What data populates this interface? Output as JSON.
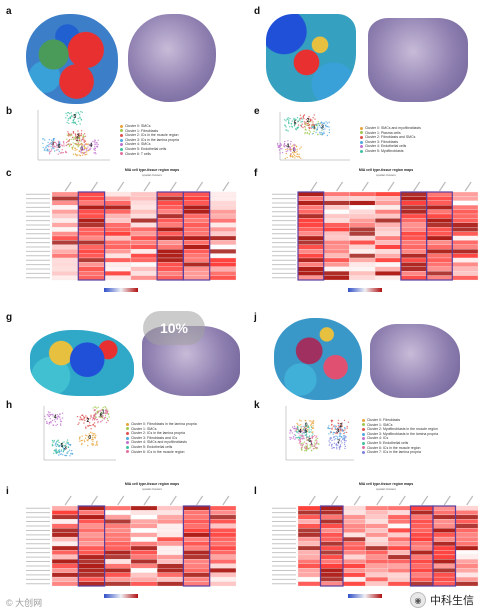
{
  "panel_labels": {
    "a": "a",
    "b": "b",
    "c": "c",
    "d": "d",
    "e": "e",
    "f": "f",
    "g": "g",
    "h": "h",
    "i": "i",
    "j": "j",
    "k": "k",
    "l": "l"
  },
  "legends": {
    "b": [
      {
        "label": "Cluster 0: SMCs",
        "color": "#e8a33a"
      },
      {
        "label": "Cluster 1: Fibroblasts",
        "color": "#a0c850"
      },
      {
        "label": "Cluster 2: ICs in the muscle region",
        "color": "#e05050"
      },
      {
        "label": "Cluster 3: ICs in the lamina propria",
        "color": "#50a8e0"
      },
      {
        "label": "Cluster 4: SMCs",
        "color": "#c070d0"
      },
      {
        "label": "Cluster 5: Endothelial cells",
        "color": "#40c0a0"
      },
      {
        "label": "Cluster 6: T cells",
        "color": "#e070a0"
      }
    ],
    "e": [
      {
        "label": "Cluster 0: SMCs and myofibroblasts",
        "color": "#e8a33a"
      },
      {
        "label": "Cluster 1: Plasma cells",
        "color": "#a0c850"
      },
      {
        "label": "Cluster 2: Fibroblasts and SMCs",
        "color": "#e05050"
      },
      {
        "label": "Cluster 3: Fibroblasts",
        "color": "#50a8e0"
      },
      {
        "label": "Cluster 4: Endothelial cells",
        "color": "#c070d0"
      },
      {
        "label": "Cluster 5: Myofibroblasts",
        "color": "#40c0a0"
      }
    ],
    "h": [
      {
        "label": "Cluster 0: Fibroblasts in the lamina propria",
        "color": "#e8a33a"
      },
      {
        "label": "Cluster 1: SMCs",
        "color": "#a0c850"
      },
      {
        "label": "Cluster 2: ICs in the lamina propria",
        "color": "#e05050"
      },
      {
        "label": "Cluster 3: Fibroblasts and ICs",
        "color": "#50a8e0"
      },
      {
        "label": "Cluster 4: SMCs and myofibroblasts",
        "color": "#c070d0"
      },
      {
        "label": "Cluster 5: Endothelial cells",
        "color": "#40c0a0"
      },
      {
        "label": "Cluster 6: ICs in the muscle region",
        "color": "#e070a0"
      }
    ],
    "k": [
      {
        "label": "Cluster 0: Fibroblasts",
        "color": "#e8a33a"
      },
      {
        "label": "Cluster 1: SMCs",
        "color": "#a0c850"
      },
      {
        "label": "Cluster 2: Myofibroblasts in the muscle region",
        "color": "#e05050"
      },
      {
        "label": "Cluster 3: Myofibroblasts in the lamina propria",
        "color": "#50a8e0"
      },
      {
        "label": "Cluster 4: ICs",
        "color": "#c070d0"
      },
      {
        "label": "Cluster 5: Endothelial cells",
        "color": "#40c0a0"
      },
      {
        "label": "Cluster 6: ICs in the muscle region",
        "color": "#e070a0"
      },
      {
        "label": "Cluster 7: ICs in the lamina propria",
        "color": "#8080e0"
      }
    ]
  },
  "heatmap_title": "MIA cell type-tissue region maps",
  "heatmap_subtitle": "spatial clusters",
  "heatmap_ylabel": "single-cell clusters",
  "overlay_text": "10%",
  "watermark_text": "© 大创网",
  "brand_text": "中科生信",
  "colors": {
    "enrich": "#b01010",
    "deplete": "#3050c8",
    "highlight": "#5a3fa0"
  }
}
